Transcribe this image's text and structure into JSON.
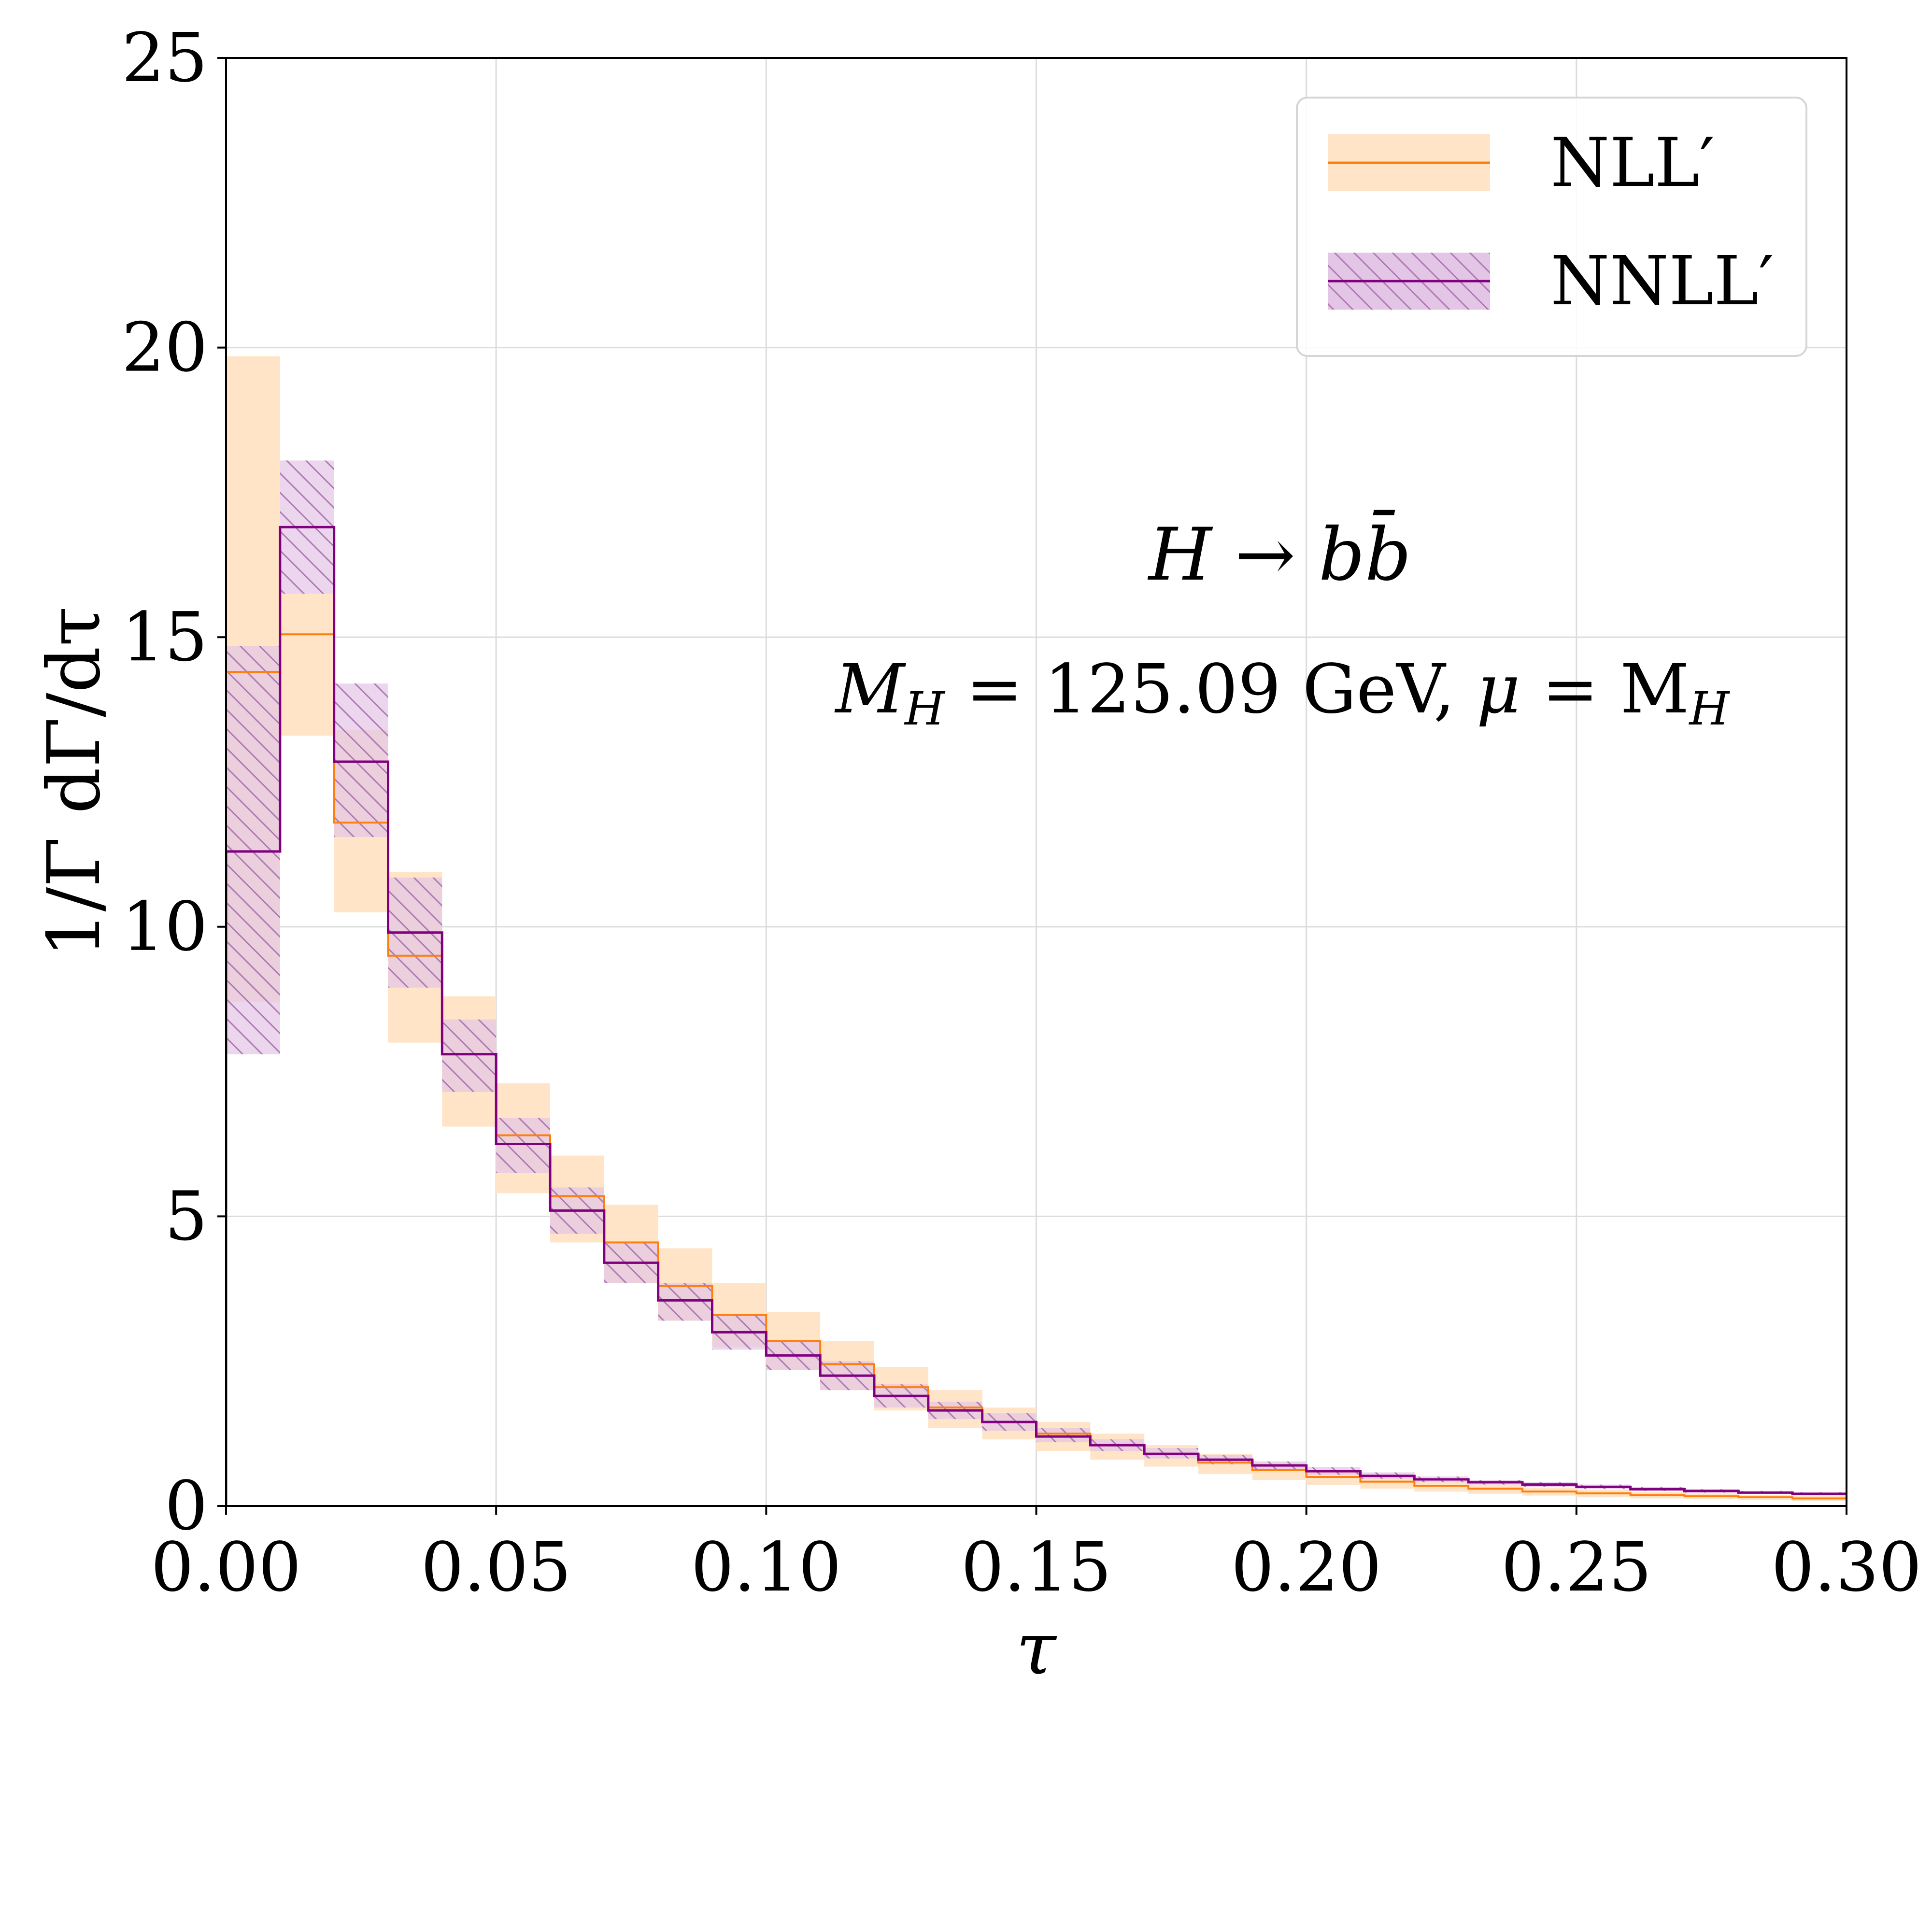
{
  "chart_data": {
    "type": "step-histogram-with-uncertainty-bands",
    "xlabel": "τ",
    "ylabel": "1/Γ dΓ/dτ",
    "xlim": [
      0.0,
      0.3
    ],
    "ylim": [
      0,
      25
    ],
    "grid": true,
    "legend_position": "top-right",
    "x_ticks": [
      "0.00",
      "0.05",
      "0.10",
      "0.15",
      "0.20",
      "0.25",
      "0.30"
    ],
    "y_ticks": [
      "0",
      "5",
      "10",
      "15",
      "20",
      "25"
    ],
    "bin_edges": [
      0.0,
      0.01,
      0.02,
      0.03,
      0.04,
      0.05,
      0.06,
      0.07,
      0.08,
      0.09,
      0.1,
      0.11,
      0.12,
      0.13,
      0.14,
      0.15,
      0.16,
      0.17,
      0.18,
      0.19,
      0.2,
      0.21,
      0.22,
      0.23,
      0.24,
      0.25,
      0.26,
      0.27,
      0.28,
      0.29,
      0.3
    ],
    "series": [
      {
        "name": "NLL′",
        "color": "#ff7f0e",
        "band_color": "#ffe4c7",
        "hatched": false,
        "central": [
          14.4,
          15.05,
          11.8,
          9.5,
          7.8,
          6.4,
          5.35,
          4.55,
          3.8,
          3.3,
          2.85,
          2.45,
          2.05,
          1.7,
          1.45,
          1.25,
          1.05,
          0.9,
          0.75,
          0.62,
          0.5,
          0.42,
          0.35,
          0.3,
          0.25,
          0.22,
          0.19,
          0.17,
          0.15,
          0.13
        ],
        "lower": [
          8.7,
          13.3,
          10.25,
          8.0,
          6.55,
          5.4,
          4.55,
          3.85,
          3.2,
          2.75,
          2.35,
          2.0,
          1.65,
          1.35,
          1.15,
          0.95,
          0.8,
          0.68,
          0.55,
          0.45,
          0.36,
          0.3,
          0.25,
          0.21,
          0.18,
          0.15,
          0.13,
          0.12,
          0.1,
          0.09
        ],
        "upper": [
          19.85,
          15.75,
          13.4,
          10.95,
          8.8,
          7.3,
          6.05,
          5.2,
          4.45,
          3.85,
          3.35,
          2.85,
          2.4,
          2.0,
          1.7,
          1.45,
          1.25,
          1.05,
          0.9,
          0.75,
          0.62,
          0.52,
          0.44,
          0.37,
          0.32,
          0.28,
          0.24,
          0.22,
          0.19,
          0.17
        ]
      },
      {
        "name": "NNLL′",
        "color": "#800080",
        "band_color": "#e3c6e6",
        "hatched": true,
        "central": [
          11.3,
          16.9,
          12.85,
          9.9,
          7.8,
          6.25,
          5.1,
          4.2,
          3.55,
          3.0,
          2.6,
          2.25,
          1.9,
          1.65,
          1.45,
          1.2,
          1.05,
          0.9,
          0.8,
          0.7,
          0.6,
          0.52,
          0.46,
          0.41,
          0.37,
          0.33,
          0.29,
          0.26,
          0.23,
          0.21
        ],
        "lower": [
          7.8,
          15.75,
          11.55,
          8.95,
          7.15,
          5.75,
          4.7,
          3.85,
          3.2,
          2.7,
          2.35,
          2.0,
          1.7,
          1.5,
          1.3,
          1.1,
          0.95,
          0.82,
          0.72,
          0.63,
          0.54,
          0.47,
          0.41,
          0.37,
          0.33,
          0.29,
          0.26,
          0.23,
          0.21,
          0.19
        ],
        "upper": [
          14.85,
          18.05,
          14.2,
          10.85,
          8.4,
          6.7,
          5.5,
          4.55,
          3.85,
          3.3,
          2.85,
          2.5,
          2.1,
          1.8,
          1.6,
          1.35,
          1.15,
          1.0,
          0.88,
          0.77,
          0.67,
          0.58,
          0.51,
          0.45,
          0.41,
          0.37,
          0.33,
          0.29,
          0.26,
          0.24
        ]
      }
    ],
    "annotations": {
      "process": "H → bb̄",
      "params_mh": "M",
      "params_mh_sub": "H",
      "params_eq1": " = 125.09 GeV,  ",
      "params_mu": "μ",
      "params_eq2": " = M",
      "params_mh2_sub": "H"
    }
  }
}
